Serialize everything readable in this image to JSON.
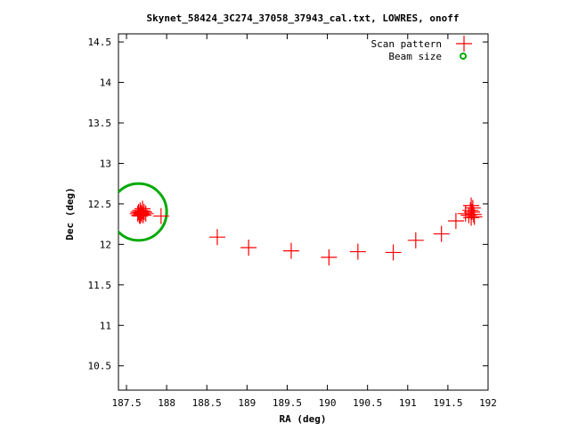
{
  "chart_data": {
    "type": "scatter",
    "title": "Skynet_58424_3C274_37058_37943_cal.txt, LOWRES, onoff",
    "xlabel": "RA (deg)",
    "ylabel": "Dec (deg)",
    "xlim": [
      187.4,
      192.0
    ],
    "ylim": [
      10.2,
      14.6
    ],
    "xticks": [
      187.5,
      188,
      188.5,
      189,
      189.5,
      190,
      190.5,
      191,
      191.5,
      192
    ],
    "yticks": [
      10.5,
      11,
      11.5,
      12,
      12.5,
      13,
      13.5,
      14,
      14.5
    ],
    "grid": false,
    "legend_position": "top-right",
    "series": [
      {
        "name": "Scan pattern",
        "color": "#ff0000",
        "marker": "plus",
        "points": [
          [
            187.64,
            12.38
          ],
          [
            187.65,
            12.4
          ],
          [
            187.66,
            12.36
          ],
          [
            187.67,
            12.42
          ],
          [
            187.68,
            12.39
          ],
          [
            187.69,
            12.37
          ],
          [
            187.7,
            12.41
          ],
          [
            187.71,
            12.36
          ],
          [
            187.72,
            12.4
          ],
          [
            187.74,
            12.38
          ],
          [
            187.67,
            12.35
          ],
          [
            187.7,
            12.44
          ],
          [
            187.93,
            12.35
          ],
          [
            188.63,
            12.09
          ],
          [
            189.02,
            11.96
          ],
          [
            189.55,
            11.92
          ],
          [
            190.02,
            11.84
          ],
          [
            190.38,
            11.91
          ],
          [
            190.82,
            11.9
          ],
          [
            191.1,
            12.05
          ],
          [
            191.42,
            12.13
          ],
          [
            191.6,
            12.29
          ],
          [
            191.72,
            12.38
          ],
          [
            191.76,
            12.36
          ],
          [
            191.78,
            12.42
          ],
          [
            191.79,
            12.33
          ],
          [
            191.8,
            12.4
          ],
          [
            191.81,
            12.45
          ],
          [
            191.82,
            12.37
          ],
          [
            191.83,
            12.34
          ],
          [
            191.79,
            12.48
          ]
        ]
      },
      {
        "name": "Beam size",
        "color": "#00aa00",
        "marker": "circle",
        "center": [
          187.65,
          12.4
        ],
        "radius_deg": 0.35
      }
    ]
  }
}
